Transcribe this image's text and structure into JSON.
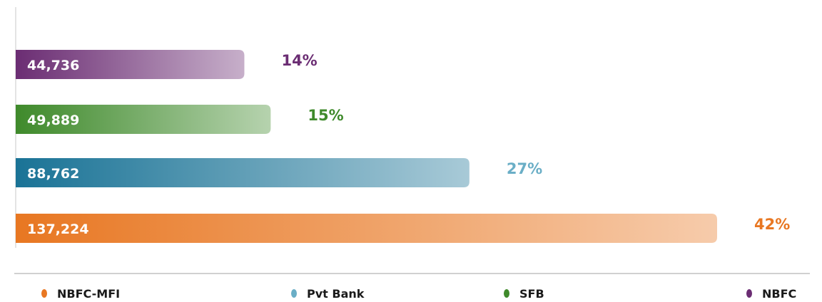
{
  "chart_data": {
    "type": "bar",
    "orientation": "horizontal",
    "categories": [
      "NBFC",
      "SFB",
      "Pvt Bank",
      "NBFC-MFI"
    ],
    "values": [
      44736,
      49889,
      88762,
      137224
    ],
    "value_labels": [
      "44,736",
      "49,889",
      "88,762",
      "137,224"
    ],
    "percent_labels": [
      "14%",
      "15%",
      "27%",
      "42%"
    ],
    "colors": [
      "#6b2d73",
      "#3f8a2b",
      "#1a7396",
      "#e87722"
    ],
    "percent_colors": [
      "#6b2d73",
      "#3f8a2b",
      "#6aaec6",
      "#e87722"
    ]
  }
}
